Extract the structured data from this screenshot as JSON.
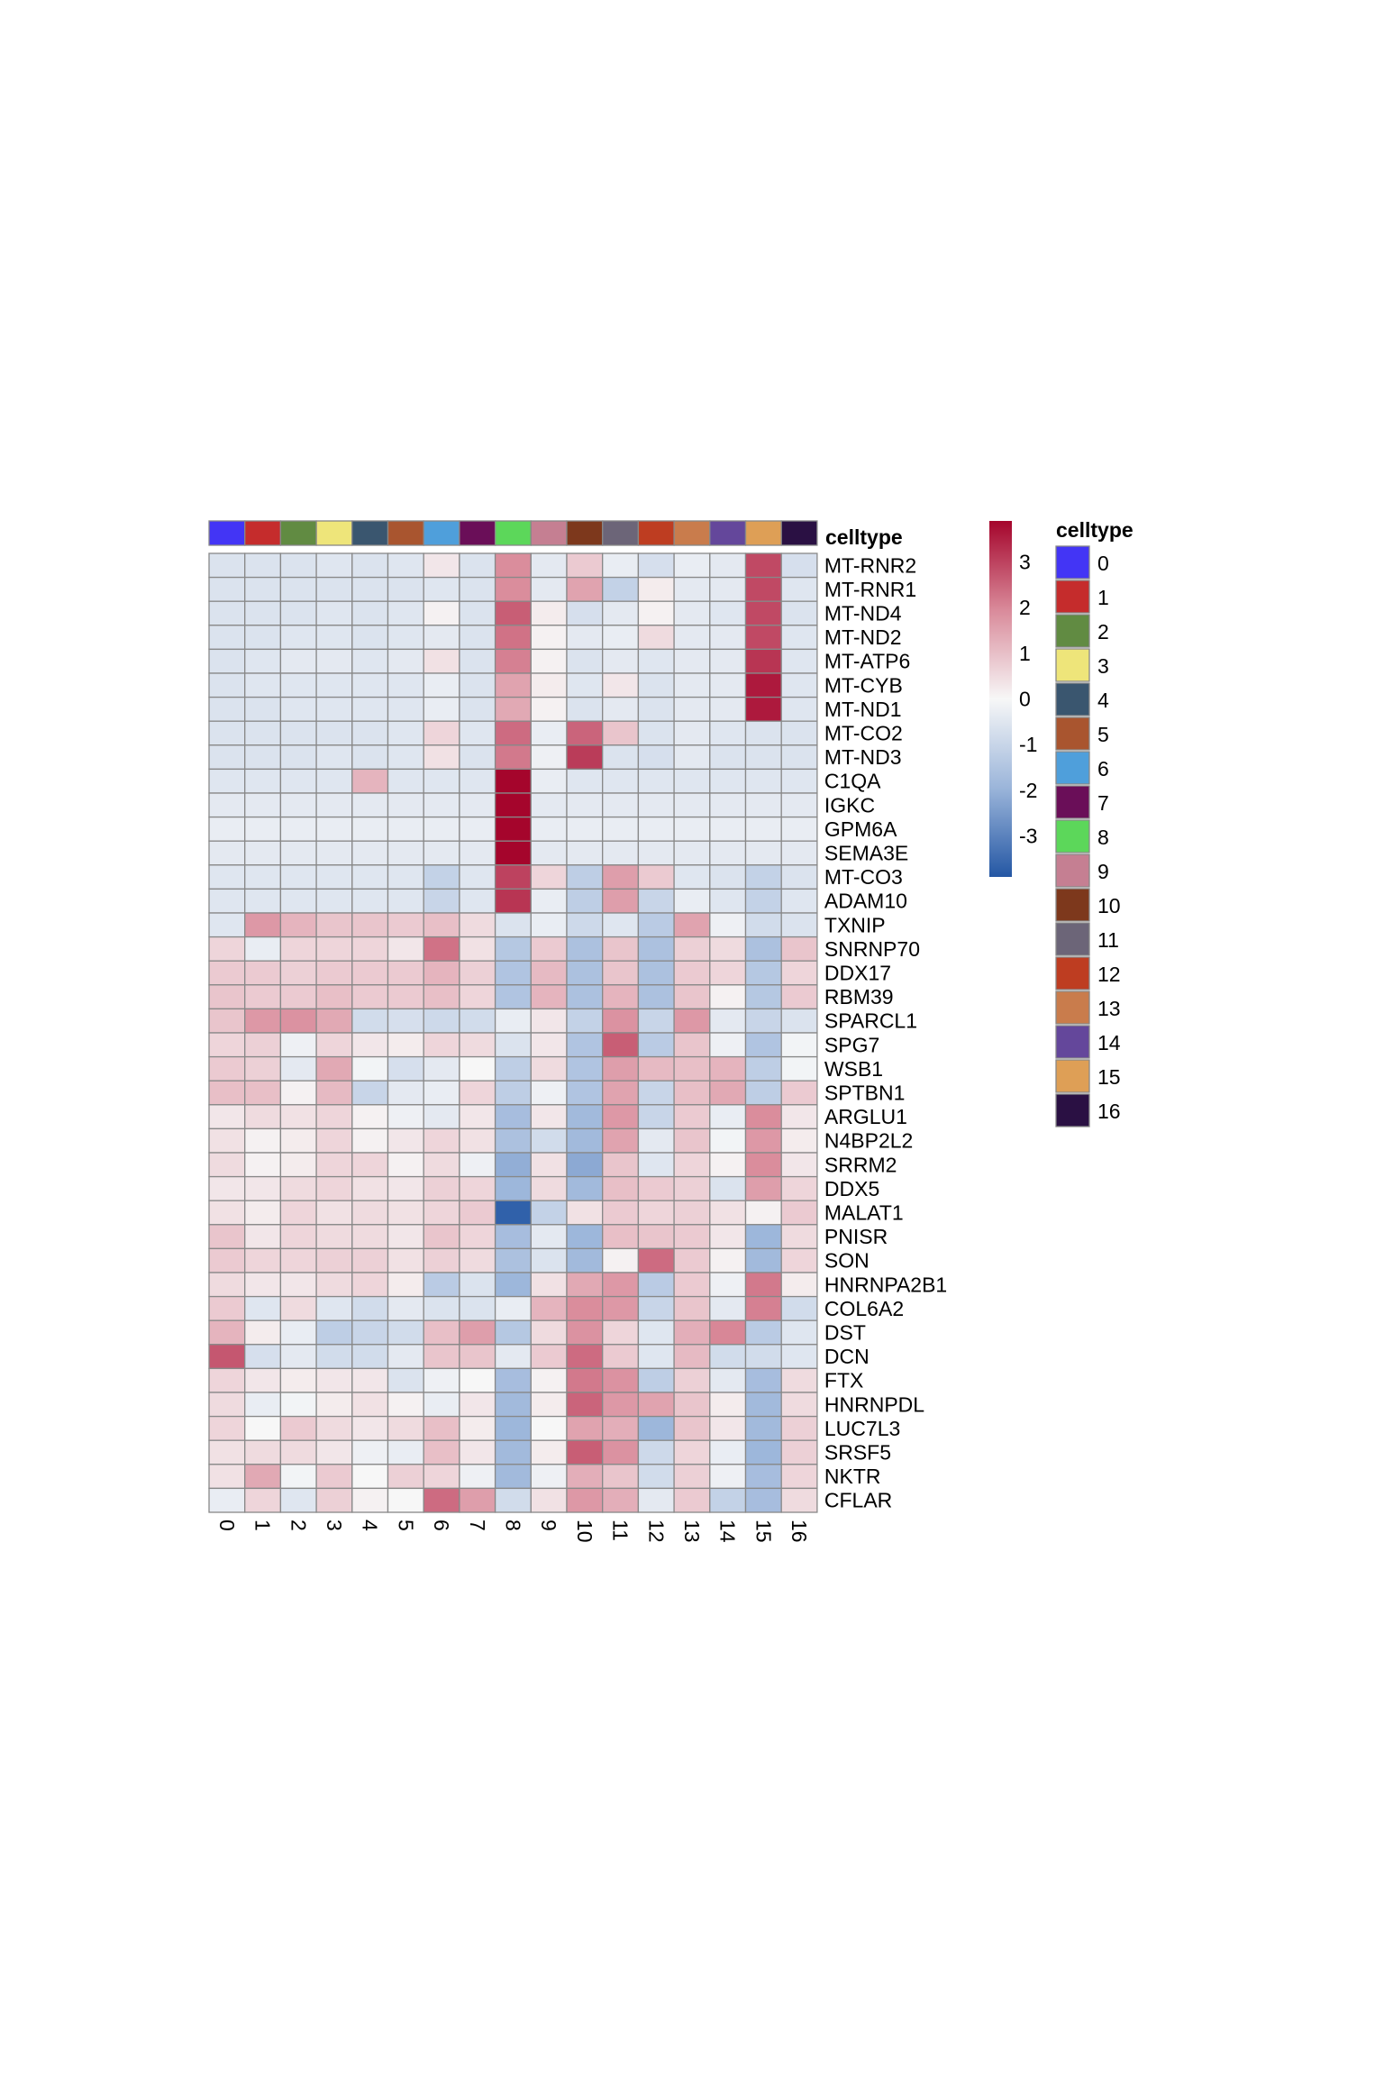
{
  "chart_data": {
    "type": "heatmap",
    "title": "",
    "xlabel": "",
    "ylabel": "",
    "columns": [
      "0",
      "1",
      "2",
      "3",
      "4",
      "5",
      "6",
      "7",
      "8",
      "9",
      "10",
      "11",
      "12",
      "13",
      "14",
      "15",
      "16"
    ],
    "rows": [
      "MT-RNR2",
      "MT-RNR1",
      "MT-ND4",
      "MT-ND2",
      "MT-ATP6",
      "MT-CYB",
      "MT-ND1",
      "MT-CO2",
      "MT-ND3",
      "C1QA",
      "IGKC",
      "GPM6A",
      "SEMA3E",
      "MT-CO3",
      "ADAM10",
      "TXNIP",
      "SNRNP70",
      "DDX17",
      "RBM39",
      "SPARCL1",
      "SPG7",
      "WSB1",
      "SPTBN1",
      "ARGLU1",
      "N4BP2L2",
      "SRRM2",
      "DDX5",
      "MALAT1",
      "PNISR",
      "SON",
      "HNRNPA2B1",
      "COL6A2",
      "DST",
      "DCN",
      "FTX",
      "HNRNPDL",
      "LUC7L3",
      "SRSF5",
      "NKTR",
      "CFLAR"
    ],
    "values": [
      [
        -0.6,
        -0.6,
        -0.6,
        -0.5,
        -0.6,
        -0.5,
        0.3,
        -0.6,
        1.9,
        -0.4,
        0.8,
        -0.3,
        -0.7,
        -0.3,
        -0.4,
        2.9,
        -0.7
      ],
      [
        -0.6,
        -0.6,
        -0.6,
        -0.6,
        -0.6,
        -0.6,
        -0.5,
        -0.6,
        1.9,
        -0.4,
        1.5,
        -1.1,
        0.2,
        -0.4,
        -0.4,
        2.9,
        -0.5
      ],
      [
        -0.6,
        -0.6,
        -0.6,
        -0.5,
        -0.6,
        -0.5,
        0.1,
        -0.6,
        2.6,
        0.2,
        -0.7,
        -0.4,
        0.1,
        -0.4,
        -0.5,
        2.9,
        -0.6
      ],
      [
        -0.6,
        -0.6,
        -0.5,
        -0.5,
        -0.6,
        -0.5,
        -0.4,
        -0.6,
        2.3,
        0.1,
        -0.4,
        -0.3,
        0.5,
        -0.4,
        -0.4,
        2.9,
        -0.5
      ],
      [
        -0.6,
        -0.5,
        -0.4,
        -0.4,
        -0.5,
        -0.4,
        0.4,
        -0.6,
        2.1,
        0.1,
        -0.6,
        -0.4,
        -0.5,
        -0.4,
        -0.4,
        3.2,
        -0.5
      ],
      [
        -0.6,
        -0.5,
        -0.5,
        -0.5,
        -0.5,
        -0.5,
        -0.3,
        -0.6,
        1.5,
        0.2,
        -0.5,
        0.3,
        -0.6,
        -0.4,
        -0.4,
        3.6,
        -0.5
      ],
      [
        -0.6,
        -0.6,
        -0.5,
        -0.5,
        -0.5,
        -0.5,
        -0.3,
        -0.6,
        1.4,
        0.1,
        -0.6,
        -0.4,
        -0.6,
        -0.4,
        -0.4,
        3.6,
        -0.5
      ],
      [
        -0.6,
        -0.6,
        -0.6,
        -0.6,
        -0.6,
        -0.5,
        0.6,
        -0.5,
        2.4,
        -0.3,
        2.5,
        0.9,
        -0.6,
        -0.4,
        -0.5,
        -0.6,
        -0.6
      ],
      [
        -0.6,
        -0.6,
        -0.6,
        -0.5,
        -0.6,
        -0.5,
        0.4,
        -0.6,
        2.2,
        -0.2,
        3.1,
        -0.6,
        -0.7,
        -0.4,
        -0.6,
        -0.6,
        -0.6
      ],
      [
        -0.5,
        -0.5,
        -0.5,
        -0.5,
        1.2,
        -0.5,
        -0.5,
        -0.5,
        3.9,
        -0.3,
        -0.5,
        -0.5,
        -0.5,
        -0.5,
        -0.5,
        -0.5,
        -0.5
      ],
      [
        -0.4,
        -0.4,
        -0.4,
        -0.4,
        -0.4,
        -0.4,
        -0.4,
        -0.4,
        3.9,
        -0.4,
        -0.4,
        -0.4,
        -0.4,
        -0.4,
        -0.4,
        -0.4,
        -0.4
      ],
      [
        -0.3,
        -0.3,
        -0.3,
        -0.3,
        -0.3,
        -0.3,
        -0.3,
        -0.3,
        3.9,
        -0.3,
        -0.3,
        -0.3,
        -0.3,
        -0.3,
        -0.3,
        -0.3,
        -0.3
      ],
      [
        -0.4,
        -0.4,
        -0.4,
        -0.4,
        -0.4,
        -0.4,
        -0.4,
        -0.4,
        3.9,
        -0.4,
        -0.4,
        -0.4,
        -0.4,
        -0.4,
        -0.4,
        -0.4,
        -0.4
      ],
      [
        -0.5,
        -0.5,
        -0.5,
        -0.5,
        -0.5,
        -0.5,
        -1.1,
        -0.5,
        3.0,
        0.6,
        -1.2,
        1.6,
        0.8,
        -0.5,
        -0.6,
        -1.1,
        -0.6
      ],
      [
        -0.5,
        -0.5,
        -0.5,
        -0.5,
        -0.5,
        -0.5,
        -1.0,
        -0.5,
        3.2,
        -0.3,
        -1.2,
        1.6,
        -1.0,
        -0.3,
        -0.5,
        -1.1,
        -0.5
      ],
      [
        -0.5,
        1.7,
        1.2,
        0.9,
        0.9,
        0.8,
        1.0,
        0.5,
        -0.6,
        -0.3,
        -0.9,
        -0.5,
        -1.3,
        1.5,
        -0.2,
        -0.8,
        -0.6
      ],
      [
        0.6,
        -0.3,
        0.6,
        0.6,
        0.6,
        0.3,
        2.3,
        0.4,
        -1.4,
        0.8,
        -1.6,
        0.9,
        -1.6,
        0.7,
        0.5,
        -1.6,
        0.9
      ],
      [
        0.8,
        0.8,
        0.7,
        0.8,
        0.8,
        0.8,
        1.2,
        0.7,
        -1.5,
        1.1,
        -1.6,
        0.9,
        -1.6,
        0.8,
        0.6,
        -1.4,
        0.6
      ],
      [
        0.9,
        0.8,
        0.8,
        1.0,
        0.8,
        0.8,
        1.0,
        0.6,
        -1.5,
        1.2,
        -1.6,
        1.2,
        -1.6,
        0.9,
        0.1,
        -1.4,
        0.8
      ],
      [
        0.9,
        1.7,
        1.8,
        1.4,
        -0.8,
        -0.7,
        -0.9,
        -0.8,
        -0.3,
        0.3,
        -1.1,
        1.8,
        -1.0,
        1.7,
        -0.4,
        -1.0,
        -0.6
      ],
      [
        0.6,
        0.7,
        -0.2,
        0.6,
        0.3,
        0.2,
        0.6,
        0.5,
        -0.6,
        0.3,
        -1.5,
        2.6,
        -1.3,
        0.9,
        -0.2,
        -1.5,
        -0.1
      ],
      [
        0.8,
        0.7,
        -0.4,
        1.4,
        -0.1,
        -0.7,
        -0.4,
        0.0,
        -1.2,
        0.5,
        -1.5,
        1.6,
        1.1,
        1.0,
        1.2,
        -1.2,
        -0.1
      ],
      [
        1.0,
        1.0,
        0.1,
        1.1,
        -1.0,
        -0.4,
        -0.3,
        0.6,
        -1.2,
        -0.2,
        -1.5,
        1.5,
        -1.0,
        1.0,
        1.4,
        -1.2,
        0.8
      ],
      [
        0.3,
        0.5,
        0.4,
        0.6,
        0.1,
        -0.2,
        -0.4,
        0.3,
        -1.7,
        0.3,
        -1.8,
        1.7,
        -1.0,
        0.8,
        -0.3,
        1.9,
        0.3
      ],
      [
        0.4,
        0.1,
        0.2,
        0.6,
        0.1,
        0.3,
        0.6,
        0.4,
        -1.6,
        -0.8,
        -1.8,
        1.5,
        -0.4,
        0.9,
        -0.1,
        1.7,
        0.2
      ],
      [
        0.5,
        0.1,
        0.2,
        0.6,
        0.6,
        0.1,
        0.5,
        -0.2,
        -2.1,
        0.4,
        -2.2,
        0.9,
        -0.5,
        0.6,
        0.1,
        1.9,
        0.3
      ],
      [
        0.3,
        0.3,
        0.5,
        0.6,
        0.4,
        0.3,
        0.7,
        0.6,
        -1.9,
        0.5,
        -1.8,
        1.0,
        0.8,
        0.7,
        -0.6,
        1.6,
        0.6
      ],
      [
        0.4,
        0.2,
        0.6,
        0.4,
        0.5,
        0.4,
        0.6,
        0.8,
        -3.7,
        -1.1,
        0.4,
        0.8,
        0.6,
        0.7,
        0.4,
        0.1,
        0.8
      ],
      [
        0.9,
        0.3,
        0.6,
        0.5,
        0.5,
        0.3,
        0.9,
        0.6,
        -1.7,
        -0.4,
        -1.9,
        1.0,
        0.9,
        0.8,
        0.3,
        -1.9,
        0.5
      ],
      [
        0.8,
        0.6,
        0.6,
        0.7,
        0.7,
        0.4,
        0.7,
        0.5,
        -1.6,
        -0.6,
        -1.8,
        0.1,
        2.4,
        0.8,
        0.1,
        -1.8,
        0.6
      ],
      [
        0.5,
        0.3,
        0.3,
        0.5,
        0.6,
        0.2,
        -1.3,
        -0.6,
        -1.9,
        0.4,
        1.4,
        1.7,
        -1.3,
        0.8,
        -0.2,
        2.2,
        0.2
      ],
      [
        0.8,
        -0.5,
        0.5,
        -0.5,
        -0.8,
        -0.4,
        -0.6,
        -0.6,
        -0.3,
        1.2,
        1.9,
        1.7,
        -1.0,
        0.9,
        -0.4,
        2.1,
        -0.8
      ],
      [
        1.2,
        0.2,
        -0.3,
        -1.2,
        -1.0,
        -0.8,
        1.0,
        1.6,
        -1.4,
        0.5,
        1.8,
        0.6,
        -0.5,
        1.3,
        2.0,
        -1.3,
        -0.5
      ],
      [
        2.7,
        -0.7,
        -0.4,
        -0.8,
        -0.8,
        -0.4,
        0.9,
        0.9,
        -0.4,
        0.8,
        2.4,
        0.8,
        -0.5,
        1.1,
        -0.8,
        -0.8,
        -0.5
      ],
      [
        0.6,
        0.3,
        0.2,
        0.3,
        0.3,
        -0.6,
        -0.2,
        0.0,
        -1.7,
        0.1,
        2.2,
        1.8,
        -1.2,
        0.7,
        -0.4,
        -1.7,
        0.5
      ],
      [
        0.5,
        -0.3,
        -0.1,
        0.2,
        0.4,
        0.1,
        -0.3,
        0.3,
        -1.8,
        0.2,
        2.5,
        1.7,
        1.5,
        0.9,
        0.2,
        -1.8,
        0.5
      ],
      [
        0.6,
        0.0,
        0.8,
        0.5,
        0.3,
        0.5,
        1.0,
        0.2,
        -1.9,
        0.0,
        1.5,
        1.3,
        -1.9,
        0.9,
        0.3,
        -1.8,
        0.7
      ],
      [
        0.4,
        0.5,
        0.5,
        0.3,
        -0.2,
        -0.3,
        1.0,
        0.3,
        -1.8,
        0.2,
        2.6,
        1.8,
        -0.9,
        0.6,
        -0.3,
        -1.9,
        0.7
      ],
      [
        0.4,
        1.4,
        -0.1,
        0.8,
        0.0,
        0.7,
        0.6,
        -0.2,
        -1.8,
        -0.2,
        1.3,
        0.9,
        -0.8,
        0.7,
        -0.2,
        -1.7,
        0.6
      ],
      [
        -0.3,
        0.6,
        -0.5,
        0.7,
        0.1,
        0.0,
        2.4,
        1.6,
        -0.8,
        0.4,
        1.7,
        1.3,
        -0.4,
        0.8,
        -1.1,
        -1.7,
        0.5
      ]
    ],
    "color_scale": {
      "stops": [
        {
          "value": -3.9,
          "color": "#2457a4"
        },
        {
          "value": -1.95,
          "color": "#9bb5da"
        },
        {
          "value": 0,
          "color": "#f7f7f7"
        },
        {
          "value": 1.95,
          "color": "#d98a9a"
        },
        {
          "value": 3.9,
          "color": "#a5052c"
        }
      ],
      "ticks": [
        "3",
        "2",
        "1",
        "0",
        "-1",
        "-2",
        "-3"
      ],
      "tick_values": [
        3,
        2,
        1,
        0,
        -1,
        -2,
        -3
      ],
      "range": [
        -3.9,
        3.9
      ]
    },
    "annotation": {
      "label": "celltype",
      "legend_title": "celltype",
      "categories": [
        "0",
        "1",
        "2",
        "3",
        "4",
        "5",
        "6",
        "7",
        "8",
        "9",
        "10",
        "11",
        "12",
        "13",
        "14",
        "15",
        "16"
      ],
      "colors": [
        "#4335f5",
        "#c52c2c",
        "#618b42",
        "#eee57a",
        "#3a566f",
        "#a9552f",
        "#4f9fdb",
        "#6a0e58",
        "#5cd75a",
        "#c57f92",
        "#7d381c",
        "#6c6578",
        "#be3d21",
        "#c97c4c",
        "#64479b",
        "#de9f56",
        "#2a1043"
      ]
    },
    "grid_color": "#888888",
    "legend_placement": "right"
  }
}
